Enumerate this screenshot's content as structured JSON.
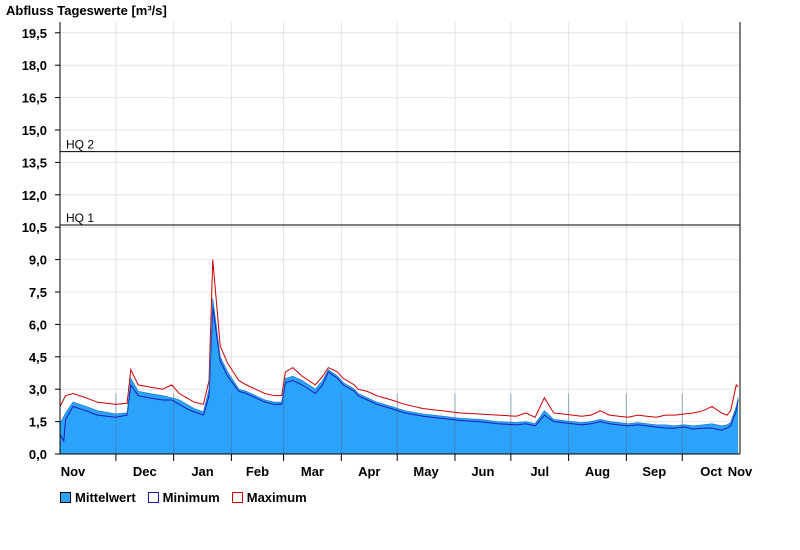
{
  "chart_data": {
    "type": "area",
    "title": "Abfluss Tageswerte [m³/s]",
    "ylim": [
      0,
      20
    ],
    "yticks": [
      "0,0",
      "1,5",
      "3,0",
      "4,5",
      "6,0",
      "7,5",
      "9,0",
      "10,5",
      "12,0",
      "13,5",
      "15,0",
      "16,5",
      "18,0",
      "19,5"
    ],
    "ytick_values": [
      0,
      1.5,
      3,
      4.5,
      6,
      7.5,
      9,
      10.5,
      12,
      13.5,
      15,
      16.5,
      18,
      19.5
    ],
    "x_axis": {
      "start": "Nov",
      "months": [
        "Nov",
        "Dec",
        "Jan",
        "Feb",
        "Mar",
        "Apr",
        "May",
        "Jun",
        "Jul",
        "Aug",
        "Sep",
        "Oct",
        "Nov"
      ],
      "month_days": [
        30,
        31,
        31,
        28,
        31,
        30,
        31,
        30,
        31,
        31,
        30,
        31
      ]
    },
    "grid": true,
    "reference_lines": [
      {
        "label": "HQ 1",
        "value": 10.6
      },
      {
        "label": "HQ 2",
        "value": 14.0
      }
    ],
    "series": [
      {
        "name": "Mittelwert",
        "color": "#2ba3fb",
        "x": [
          0,
          3,
          7,
          14,
          20,
          30,
          36,
          38,
          42,
          48,
          55,
          60,
          64,
          68,
          72,
          77,
          80,
          82,
          86,
          90,
          96,
          100,
          105,
          110,
          115,
          119,
          121,
          125,
          130,
          137,
          141,
          144,
          149,
          152,
          158,
          160,
          165,
          170,
          178,
          185,
          195,
          205,
          215,
          225,
          235,
          245,
          250,
          255,
          260,
          265,
          270,
          275,
          280,
          285,
          290,
          295,
          300,
          305,
          310,
          315,
          320,
          325,
          330,
          335,
          340,
          345,
          350,
          355,
          358,
          360,
          363,
          364
        ],
        "values": [
          1.4,
          1.9,
          2.4,
          2.2,
          2.0,
          1.85,
          1.9,
          3.5,
          2.9,
          2.8,
          2.7,
          2.6,
          2.5,
          2.3,
          2.1,
          1.95,
          3.0,
          7.2,
          4.5,
          3.8,
          3.0,
          2.9,
          2.7,
          2.5,
          2.4,
          2.4,
          3.5,
          3.6,
          3.4,
          3.0,
          3.4,
          3.9,
          3.6,
          3.3,
          3.0,
          2.8,
          2.6,
          2.4,
          2.2,
          2.0,
          1.85,
          1.75,
          1.65,
          1.6,
          1.5,
          1.45,
          1.5,
          1.4,
          2.0,
          1.6,
          1.55,
          1.5,
          1.45,
          1.5,
          1.6,
          1.5,
          1.45,
          1.4,
          1.45,
          1.4,
          1.35,
          1.35,
          1.3,
          1.35,
          1.3,
          1.35,
          1.4,
          1.3,
          1.35,
          1.45,
          2.2,
          2.6
        ]
      },
      {
        "name": "Minimum",
        "color": "#1a1ab8",
        "x": [
          0,
          2,
          3,
          7,
          14,
          20,
          30,
          36,
          38,
          42,
          48,
          55,
          60,
          64,
          68,
          72,
          77,
          80,
          82,
          86,
          90,
          96,
          100,
          105,
          110,
          115,
          119,
          121,
          125,
          130,
          137,
          141,
          144,
          149,
          152,
          158,
          160,
          165,
          170,
          178,
          185,
          195,
          205,
          215,
          225,
          235,
          245,
          250,
          255,
          260,
          265,
          270,
          275,
          280,
          285,
          290,
          295,
          300,
          305,
          310,
          315,
          320,
          325,
          330,
          335,
          340,
          345,
          350,
          355,
          358,
          360,
          363,
          364
        ],
        "values": [
          0.9,
          0.6,
          1.6,
          2.2,
          2.0,
          1.8,
          1.7,
          1.8,
          3.2,
          2.7,
          2.6,
          2.5,
          2.5,
          2.3,
          2.1,
          1.95,
          1.8,
          2.7,
          6.8,
          4.3,
          3.6,
          2.9,
          2.8,
          2.6,
          2.4,
          2.3,
          2.3,
          3.3,
          3.4,
          3.2,
          2.8,
          3.2,
          3.8,
          3.5,
          3.2,
          2.9,
          2.7,
          2.5,
          2.3,
          2.1,
          1.9,
          1.75,
          1.65,
          1.55,
          1.5,
          1.4,
          1.35,
          1.4,
          1.3,
          1.8,
          1.5,
          1.45,
          1.4,
          1.35,
          1.4,
          1.5,
          1.4,
          1.35,
          1.3,
          1.35,
          1.3,
          1.25,
          1.2,
          1.2,
          1.25,
          1.15,
          1.2,
          1.2,
          1.1,
          1.2,
          1.3,
          2.0,
          2.5
        ]
      },
      {
        "name": "Maximum",
        "color": "#cc0000",
        "x": [
          0,
          3,
          7,
          14,
          20,
          30,
          36,
          38,
          42,
          48,
          55,
          60,
          64,
          68,
          72,
          77,
          80,
          82,
          86,
          90,
          96,
          100,
          105,
          110,
          115,
          119,
          121,
          125,
          130,
          137,
          141,
          144,
          149,
          152,
          158,
          160,
          165,
          170,
          178,
          185,
          195,
          205,
          215,
          225,
          235,
          245,
          250,
          255,
          260,
          265,
          270,
          275,
          280,
          285,
          290,
          295,
          300,
          305,
          310,
          315,
          320,
          325,
          330,
          335,
          340,
          345,
          350,
          355,
          358,
          360,
          363,
          364
        ],
        "values": [
          2.2,
          2.7,
          2.8,
          2.6,
          2.4,
          2.3,
          2.35,
          3.9,
          3.2,
          3.1,
          3.0,
          3.2,
          2.8,
          2.6,
          2.4,
          2.3,
          3.4,
          9.0,
          5.0,
          4.2,
          3.4,
          3.2,
          3.0,
          2.8,
          2.7,
          2.7,
          3.8,
          4.0,
          3.6,
          3.2,
          3.6,
          4.0,
          3.8,
          3.5,
          3.2,
          3.0,
          2.9,
          2.7,
          2.5,
          2.3,
          2.1,
          2.0,
          1.9,
          1.85,
          1.8,
          1.75,
          1.9,
          1.7,
          2.6,
          1.9,
          1.85,
          1.8,
          1.75,
          1.8,
          2.0,
          1.8,
          1.75,
          1.7,
          1.8,
          1.75,
          1.7,
          1.8,
          1.8,
          1.85,
          1.9,
          2.0,
          2.2,
          1.9,
          1.8,
          2.0,
          3.2,
          3.1
        ]
      }
    ]
  }
}
